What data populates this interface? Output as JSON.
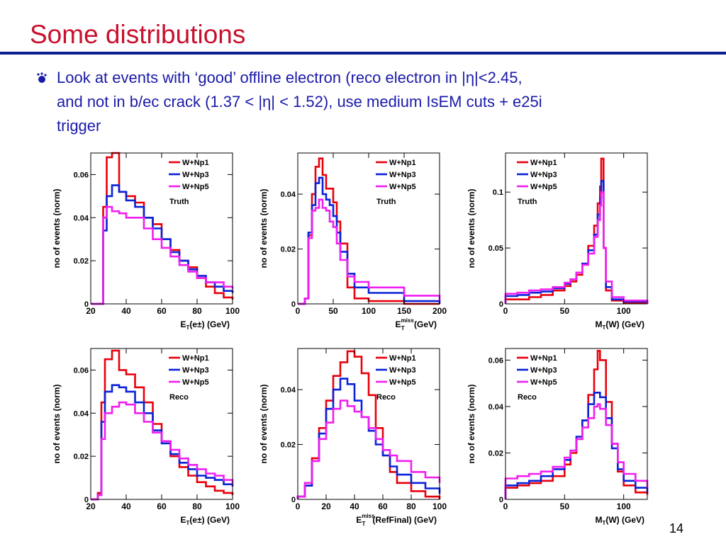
{
  "slide": {
    "title": "Some distributions",
    "bullet_lines": [
      "Look at events with ‘good’ offline electron (reco electron in |η|<2.45,",
      "and not in b/ec crack (1.37 < |η| < 1.52), use medium IsEM cuts + e25i",
      "trigger"
    ],
    "page_number": "14"
  },
  "colors": {
    "title": "#c8102e",
    "rule": "#0b1f8f",
    "text": "#1a1aa8",
    "Np1": "#e8000b",
    "Np3": "#0a22d8",
    "Np5": "#f01ef0"
  },
  "chart_data": [
    {
      "type": "histogram",
      "panel": "Truth",
      "ylabel": "no of events (norm)",
      "xlabel": "E_T(e±) (GeV)",
      "xlim": [
        20,
        100
      ],
      "ylim": [
        0,
        0.07
      ],
      "xticks": [
        20,
        40,
        60,
        80,
        100
      ],
      "yticks": [
        0,
        0.02,
        0.04,
        0.06
      ],
      "ytick_labels": [
        "0",
        "0.02",
        "0.04",
        "0.06"
      ],
      "legend_location": "top-right",
      "series": [
        {
          "name": "W+Np1",
          "color": "#e8000b",
          "x": [
            20,
            24,
            27,
            29,
            32,
            36,
            40,
            45,
            50,
            55,
            60,
            65,
            70,
            75,
            80,
            85,
            90,
            95,
            100
          ],
          "y": [
            0,
            0,
            0.045,
            0.068,
            0.07,
            0.052,
            0.05,
            0.047,
            0.04,
            0.037,
            0.03,
            0.025,
            0.02,
            0.017,
            0.012,
            0.008,
            0.005,
            0.003,
            0.002
          ]
        },
        {
          "name": "W+Np3",
          "color": "#0a22d8",
          "x": [
            20,
            24,
            27,
            29,
            32,
            36,
            40,
            45,
            50,
            55,
            60,
            65,
            70,
            75,
            80,
            85,
            90,
            95,
            100
          ],
          "y": [
            0,
            0,
            0.034,
            0.05,
            0.055,
            0.052,
            0.048,
            0.045,
            0.04,
            0.035,
            0.03,
            0.024,
            0.02,
            0.016,
            0.013,
            0.01,
            0.008,
            0.006,
            0.005
          ]
        },
        {
          "name": "W+Np5",
          "color": "#f01ef0",
          "x": [
            20,
            24,
            27,
            29,
            32,
            36,
            40,
            45,
            50,
            55,
            60,
            65,
            70,
            75,
            80,
            85,
            90,
            95,
            100
          ],
          "y": [
            0,
            0,
            0.04,
            0.045,
            0.043,
            0.042,
            0.04,
            0.04,
            0.035,
            0.03,
            0.026,
            0.022,
            0.018,
            0.015,
            0.012,
            0.01,
            0.01,
            0.008,
            0.007
          ]
        }
      ]
    },
    {
      "type": "histogram",
      "panel": "Truth",
      "ylabel": "no of events (norm)",
      "xlabel": "E_T^miss (GeV)",
      "xlim": [
        0,
        200
      ],
      "ylim": [
        0,
        0.055
      ],
      "xticks": [
        0,
        50,
        100,
        150,
        200
      ],
      "yticks": [
        0,
        0.02,
        0.04
      ],
      "ytick_labels": [
        "0",
        "0.02",
        "0.04"
      ],
      "legend_location": "top-right",
      "series": [
        {
          "name": "W+Np1",
          "color": "#e8000b",
          "x": [
            0,
            10,
            15,
            20,
            25,
            30,
            35,
            40,
            45,
            50,
            55,
            60,
            70,
            80,
            100,
            150,
            200
          ],
          "y": [
            0,
            0.002,
            0.025,
            0.04,
            0.05,
            0.053,
            0.047,
            0.042,
            0.042,
            0.037,
            0.03,
            0.022,
            0.006,
            0.002,
            0.001,
            0,
            0
          ]
        },
        {
          "name": "W+Np3",
          "color": "#0a22d8",
          "x": [
            0,
            10,
            15,
            20,
            25,
            30,
            35,
            40,
            45,
            50,
            55,
            60,
            70,
            80,
            100,
            150,
            200
          ],
          "y": [
            0,
            0.002,
            0.026,
            0.036,
            0.044,
            0.046,
            0.04,
            0.038,
            0.036,
            0.032,
            0.026,
            0.019,
            0.011,
            0.006,
            0.004,
            0.001,
            0
          ]
        },
        {
          "name": "W+Np5",
          "color": "#f01ef0",
          "x": [
            0,
            10,
            15,
            20,
            25,
            30,
            35,
            40,
            45,
            50,
            55,
            60,
            70,
            80,
            100,
            150,
            200
          ],
          "y": [
            0,
            0.002,
            0.024,
            0.034,
            0.035,
            0.038,
            0.035,
            0.034,
            0.03,
            0.028,
            0.022,
            0.016,
            0.01,
            0.008,
            0.006,
            0.003,
            0.001
          ]
        }
      ]
    },
    {
      "type": "histogram",
      "panel": "Truth",
      "ylabel": "no of events (norm)",
      "xlabel": "M_T(W) (GeV)",
      "xlim": [
        0,
        120
      ],
      "ylim": [
        0,
        0.135
      ],
      "xticks": [
        0,
        50,
        100
      ],
      "yticks": [
        0,
        0.05,
        0.1
      ],
      "ytick_labels": [
        "0",
        "0.05",
        "0.1"
      ],
      "legend_location": "top-left",
      "series": [
        {
          "name": "W+Np1",
          "color": "#e8000b",
          "x": [
            0,
            10,
            20,
            30,
            40,
            50,
            55,
            60,
            65,
            70,
            75,
            78,
            80,
            81,
            83,
            85,
            90,
            100,
            120
          ],
          "y": [
            0.004,
            0.004,
            0.006,
            0.008,
            0.012,
            0.016,
            0.02,
            0.026,
            0.036,
            0.052,
            0.07,
            0.09,
            0.105,
            0.13,
            0.05,
            0.012,
            0.003,
            0.001,
            0
          ]
        },
        {
          "name": "W+Np3",
          "color": "#0a22d8",
          "x": [
            0,
            10,
            20,
            30,
            40,
            50,
            55,
            60,
            65,
            70,
            75,
            78,
            80,
            81,
            83,
            85,
            90,
            100,
            120
          ],
          "y": [
            0.007,
            0.008,
            0.01,
            0.011,
            0.014,
            0.018,
            0.022,
            0.028,
            0.036,
            0.048,
            0.062,
            0.08,
            0.095,
            0.11,
            0.05,
            0.015,
            0.004,
            0.002,
            0
          ]
        },
        {
          "name": "W+Np5",
          "color": "#f01ef0",
          "x": [
            0,
            10,
            20,
            30,
            40,
            50,
            55,
            60,
            65,
            70,
            75,
            78,
            80,
            81,
            83,
            85,
            90,
            100,
            120
          ],
          "y": [
            0.009,
            0.01,
            0.012,
            0.013,
            0.015,
            0.019,
            0.022,
            0.028,
            0.035,
            0.045,
            0.06,
            0.075,
            0.088,
            0.1,
            0.05,
            0.02,
            0.006,
            0.003,
            0
          ]
        }
      ]
    },
    {
      "type": "histogram",
      "panel": "Reco",
      "ylabel": "no of events (norm)",
      "xlabel": "E_T(e±) (GeV)",
      "xlim": [
        20,
        100
      ],
      "ylim": [
        0,
        0.07
      ],
      "xticks": [
        20,
        40,
        60,
        80,
        100
      ],
      "yticks": [
        0,
        0.02,
        0.04,
        0.06
      ],
      "ytick_labels": [
        "0",
        "0.02",
        "0.04",
        "0.06"
      ],
      "legend_location": "top-right",
      "series": [
        {
          "name": "W+Np1",
          "color": "#e8000b",
          "x": [
            20,
            24,
            26,
            28,
            32,
            36,
            40,
            45,
            50,
            55,
            60,
            65,
            70,
            75,
            80,
            85,
            90,
            95,
            100
          ],
          "y": [
            0,
            0.003,
            0.045,
            0.065,
            0.069,
            0.06,
            0.058,
            0.052,
            0.045,
            0.035,
            0.027,
            0.02,
            0.015,
            0.011,
            0.008,
            0.006,
            0.004,
            0.003,
            0.002
          ]
        },
        {
          "name": "W+Np3",
          "color": "#0a22d8",
          "x": [
            20,
            24,
            26,
            28,
            32,
            36,
            40,
            45,
            50,
            55,
            60,
            65,
            70,
            75,
            80,
            85,
            90,
            95,
            100
          ],
          "y": [
            0,
            0.002,
            0.036,
            0.05,
            0.053,
            0.052,
            0.05,
            0.045,
            0.04,
            0.032,
            0.026,
            0.021,
            0.017,
            0.014,
            0.011,
            0.01,
            0.009,
            0.007,
            0.006
          ]
        },
        {
          "name": "W+Np5",
          "color": "#f01ef0",
          "x": [
            20,
            24,
            26,
            28,
            32,
            36,
            40,
            45,
            50,
            55,
            60,
            65,
            70,
            75,
            80,
            85,
            90,
            95,
            100
          ],
          "y": [
            0,
            0.002,
            0.028,
            0.04,
            0.043,
            0.045,
            0.044,
            0.04,
            0.036,
            0.031,
            0.027,
            0.023,
            0.019,
            0.016,
            0.014,
            0.012,
            0.011,
            0.009,
            0.007
          ]
        }
      ]
    },
    {
      "type": "histogram",
      "panel": "Reco",
      "ylabel": "no of events (norm)",
      "xlabel": "E_T^miss(RefFinal) (GeV)",
      "xlim": [
        0,
        100
      ],
      "ylim": [
        0,
        0.055
      ],
      "xticks": [
        0,
        20,
        40,
        60,
        80,
        100
      ],
      "yticks": [
        0,
        0.02,
        0.04
      ],
      "ytick_labels": [
        "0",
        "0.02",
        "0.04"
      ],
      "legend_location": "top-right",
      "series": [
        {
          "name": "W+Np1",
          "color": "#e8000b",
          "x": [
            0,
            5,
            10,
            15,
            20,
            25,
            30,
            35,
            40,
            45,
            50,
            55,
            60,
            65,
            70,
            80,
            90,
            100
          ],
          "y": [
            0.001,
            0.005,
            0.015,
            0.026,
            0.036,
            0.045,
            0.05,
            0.054,
            0.052,
            0.046,
            0.038,
            0.026,
            0.016,
            0.01,
            0.006,
            0.003,
            0.001,
            0
          ]
        },
        {
          "name": "W+Np3",
          "color": "#0a22d8",
          "x": [
            0,
            5,
            10,
            15,
            20,
            25,
            30,
            35,
            40,
            45,
            50,
            55,
            60,
            65,
            70,
            80,
            90,
            100
          ],
          "y": [
            0.001,
            0.005,
            0.014,
            0.024,
            0.033,
            0.04,
            0.044,
            0.042,
            0.036,
            0.03,
            0.025,
            0.02,
            0.016,
            0.012,
            0.009,
            0.006,
            0.004,
            0.002
          ]
        },
        {
          "name": "W+Np5",
          "color": "#f01ef0",
          "x": [
            0,
            5,
            10,
            15,
            20,
            25,
            30,
            35,
            40,
            45,
            50,
            55,
            60,
            65,
            70,
            80,
            90,
            100
          ],
          "y": [
            0.001,
            0.006,
            0.014,
            0.022,
            0.028,
            0.033,
            0.036,
            0.034,
            0.032,
            0.03,
            0.026,
            0.022,
            0.018,
            0.016,
            0.014,
            0.01,
            0.008,
            0.006
          ]
        }
      ]
    },
    {
      "type": "histogram",
      "panel": "Reco",
      "ylabel": "no of events (norm)",
      "xlabel": "M_T(W) (GeV)",
      "xlim": [
        0,
        120
      ],
      "ylim": [
        0,
        0.065
      ],
      "xticks": [
        0,
        50,
        100
      ],
      "yticks": [
        0,
        0.02,
        0.04,
        0.06
      ],
      "ytick_labels": [
        "0",
        "0.02",
        "0.04",
        "0.06"
      ],
      "legend_location": "top-left",
      "series": [
        {
          "name": "W+Np1",
          "color": "#e8000b",
          "x": [
            0,
            10,
            20,
            30,
            40,
            50,
            55,
            60,
            65,
            70,
            75,
            78,
            80,
            85,
            90,
            95,
            100,
            110,
            120
          ],
          "y": [
            0.005,
            0.006,
            0.007,
            0.008,
            0.01,
            0.015,
            0.02,
            0.026,
            0.034,
            0.045,
            0.056,
            0.064,
            0.06,
            0.042,
            0.024,
            0.012,
            0.006,
            0.003,
            0.002
          ]
        },
        {
          "name": "W+Np3",
          "color": "#0a22d8",
          "x": [
            0,
            10,
            20,
            30,
            40,
            50,
            55,
            60,
            65,
            70,
            75,
            78,
            80,
            85,
            90,
            95,
            100,
            110,
            120
          ],
          "y": [
            0.006,
            0.007,
            0.008,
            0.01,
            0.013,
            0.017,
            0.021,
            0.027,
            0.034,
            0.041,
            0.046,
            0.046,
            0.044,
            0.035,
            0.022,
            0.013,
            0.008,
            0.005,
            0.003
          ]
        },
        {
          "name": "W+Np5",
          "color": "#f01ef0",
          "x": [
            0,
            10,
            20,
            30,
            40,
            50,
            55,
            60,
            65,
            70,
            75,
            78,
            80,
            85,
            90,
            95,
            100,
            110,
            120
          ],
          "y": [
            0.009,
            0.01,
            0.011,
            0.012,
            0.014,
            0.018,
            0.021,
            0.026,
            0.031,
            0.035,
            0.04,
            0.041,
            0.039,
            0.032,
            0.024,
            0.016,
            0.011,
            0.008,
            0.005
          ]
        }
      ]
    }
  ]
}
